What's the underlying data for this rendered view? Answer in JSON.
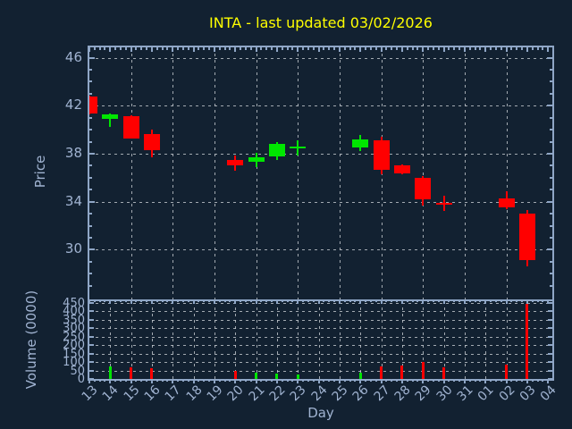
{
  "title": "INTA - last updated 03/02/2026",
  "colors": {
    "background": "#122131",
    "axes": "#8fa6c6",
    "text": "#a0b3d1",
    "grid": "#c7ccd1",
    "title": "#ffff00",
    "up": "#00e600",
    "down": "#ff0000"
  },
  "chart_data": [
    {
      "type": "candlestick",
      "title": "INTA - last updated 03/02/2026",
      "xlabel": "Day",
      "ylabel": "Price",
      "x_categories": [
        "13",
        "14",
        "15",
        "16",
        "17",
        "18",
        "19",
        "20",
        "21",
        "22",
        "23",
        "24",
        "25",
        "26",
        "27",
        "28",
        "29",
        "30",
        "31",
        "01",
        "02",
        "03",
        "04"
      ],
      "y_ticks": [
        30,
        34,
        38,
        42,
        46
      ],
      "ylim": [
        26,
        47.2
      ],
      "grid": "dashed, y at ticks, x at alternate days 15-02",
      "candles": [
        {
          "day": "13",
          "open": 42.8,
          "high": 42.85,
          "low": 41.3,
          "close": 41.35
        },
        {
          "day": "14",
          "open": 40.9,
          "high": 41.35,
          "low": 40.2,
          "close": 41.25
        },
        {
          "day": "15",
          "open": 41.15,
          "high": 41.2,
          "low": 39.25,
          "close": 39.3
        },
        {
          "day": "16",
          "open": 39.65,
          "high": 40.0,
          "low": 37.7,
          "close": 38.3
        },
        {
          "day": "20",
          "open": 37.5,
          "high": 37.85,
          "low": 36.6,
          "close": 37.0
        },
        {
          "day": "21",
          "open": 37.3,
          "high": 38.05,
          "low": 36.85,
          "close": 37.7
        },
        {
          "day": "22",
          "open": 37.8,
          "high": 39.0,
          "low": 37.5,
          "close": 38.85
        },
        {
          "day": "23",
          "open": 38.5,
          "high": 39.15,
          "low": 37.85,
          "close": 38.6
        },
        {
          "day": "26",
          "open": 38.5,
          "high": 39.6,
          "low": 38.25,
          "close": 39.2
        },
        {
          "day": "27",
          "open": 39.1,
          "high": 39.4,
          "low": 36.3,
          "close": 36.65
        },
        {
          "day": "28",
          "open": 37.0,
          "high": 37.1,
          "low": 36.3,
          "close": 36.35
        },
        {
          "day": "29",
          "open": 35.95,
          "high": 36.1,
          "low": 33.7,
          "close": 34.2
        },
        {
          "day": "30",
          "open": 33.9,
          "high": 34.5,
          "low": 33.2,
          "close": 33.85
        },
        {
          "day": "02",
          "open": 34.3,
          "high": 34.85,
          "low": 33.4,
          "close": 33.5
        },
        {
          "day": "03",
          "open": 33.0,
          "high": 33.3,
          "low": 28.6,
          "close": 29.1
        }
      ]
    },
    {
      "type": "bar",
      "ylabel": "Volume (0000)",
      "y_ticks": [
        0,
        50,
        100,
        150,
        200,
        250,
        300,
        350,
        400,
        450
      ],
      "ylim": [
        0,
        465
      ],
      "grid": "dashed, y every 50, x every day 14-02",
      "bars": [
        {
          "day": "14",
          "value": 74,
          "direction": "up"
        },
        {
          "day": "15",
          "value": 69,
          "direction": "down"
        },
        {
          "day": "16",
          "value": 63,
          "direction": "down"
        },
        {
          "day": "20",
          "value": 50,
          "direction": "down"
        },
        {
          "day": "21",
          "value": 35,
          "direction": "up"
        },
        {
          "day": "22",
          "value": 30,
          "direction": "up"
        },
        {
          "day": "23",
          "value": 25,
          "direction": "up"
        },
        {
          "day": "26",
          "value": 35,
          "direction": "up"
        },
        {
          "day": "27",
          "value": 74,
          "direction": "down"
        },
        {
          "day": "28",
          "value": 78,
          "direction": "down"
        },
        {
          "day": "29",
          "value": 100,
          "direction": "down"
        },
        {
          "day": "30",
          "value": 69,
          "direction": "down"
        },
        {
          "day": "02",
          "value": 83,
          "direction": "down"
        },
        {
          "day": "03",
          "value": 445,
          "direction": "down"
        }
      ]
    }
  ]
}
